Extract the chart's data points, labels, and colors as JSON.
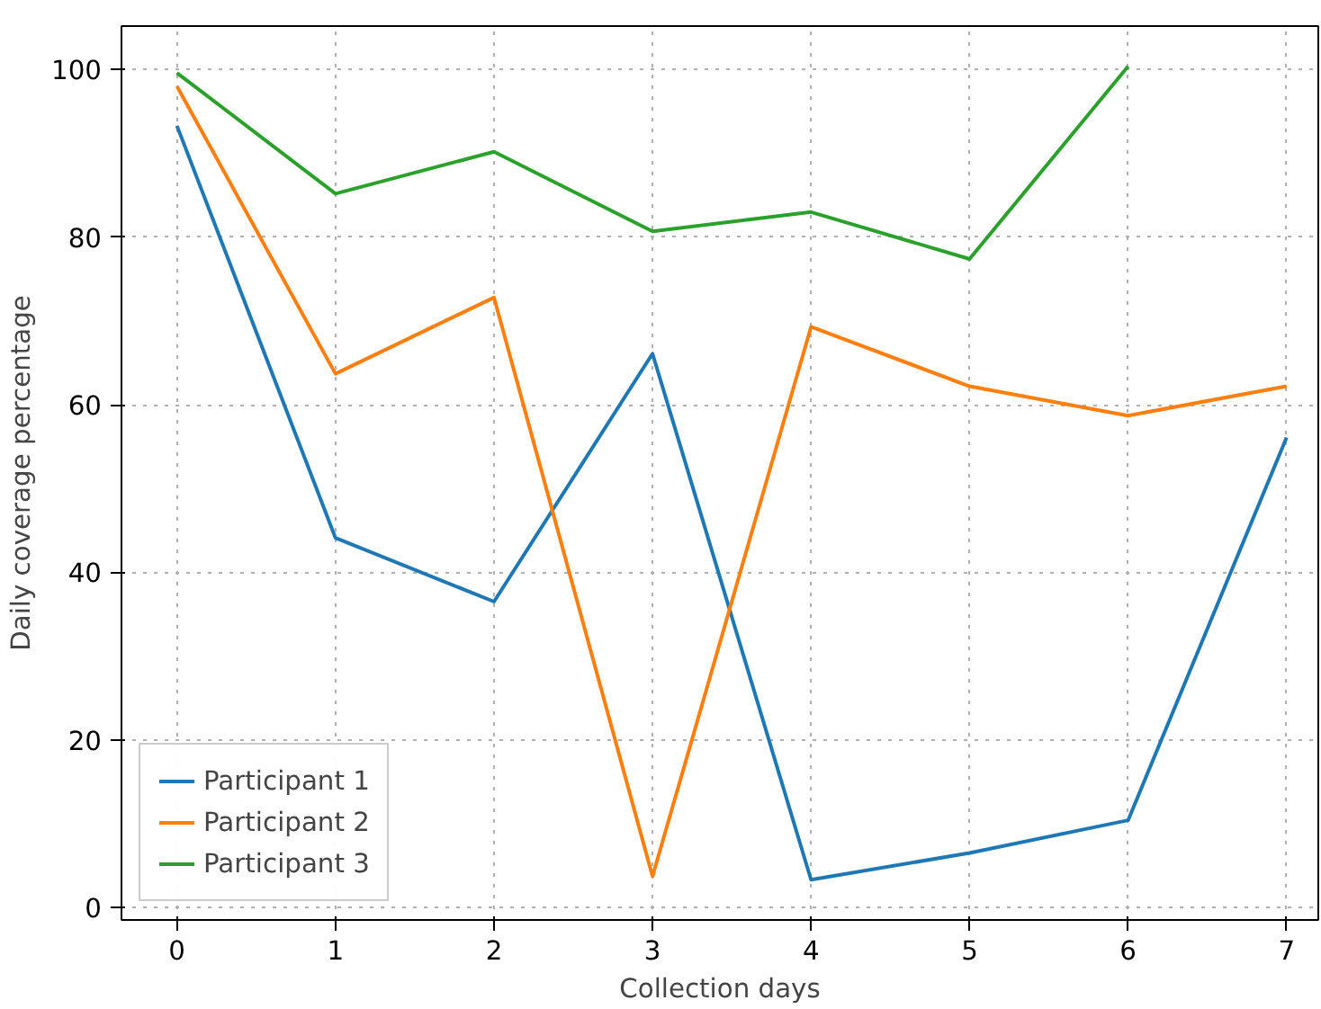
{
  "chart_data": {
    "type": "line",
    "xlabel": "Collection days",
    "ylabel": "Daily coverage percentage",
    "x": [
      0,
      1,
      2,
      3,
      4,
      5,
      6,
      7
    ],
    "series": [
      {
        "name": "Participant 1",
        "color": "#1f77b4",
        "values": [
          93.3,
          44.1,
          36.5,
          66.1,
          3.3,
          6.5,
          10.4,
          56.1
        ]
      },
      {
        "name": "Participant 2",
        "color": "#ff7f0e",
        "values": [
          98.0,
          63.7,
          72.8,
          3.7,
          69.3,
          62.2,
          58.7,
          62.2
        ]
      },
      {
        "name": "Participant 3",
        "color": "#2ca02c",
        "values": [
          99.6,
          85.2,
          90.2,
          80.7,
          83.0,
          77.4,
          100.4,
          null
        ]
      }
    ],
    "xlim": [
      -0.35,
      7.2
    ],
    "ylim": [
      -1.5,
      105.2
    ],
    "xticks": [
      0,
      1,
      2,
      3,
      4,
      5,
      6,
      7
    ],
    "yticks": [
      0,
      20,
      40,
      60,
      80,
      100
    ],
    "grid": true,
    "line_style": "solid",
    "marker": "none",
    "legend": "bottom left"
  }
}
